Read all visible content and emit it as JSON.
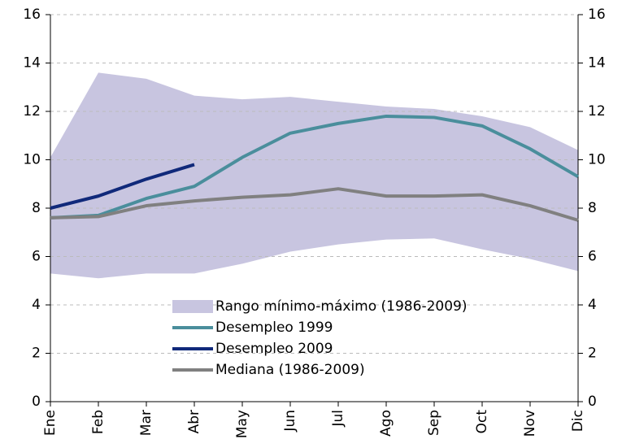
{
  "chart_data": {
    "type": "line",
    "categories": [
      "Ene",
      "Feb",
      "Mar",
      "Abr",
      "May",
      "Jun",
      "Jul",
      "Ago",
      "Sep",
      "Oct",
      "Nov",
      "Dic"
    ],
    "band": {
      "name": "Rango mínimo-máximo (1986-2009)",
      "color": "#c8c5e0",
      "high": [
        10.1,
        13.6,
        13.35,
        12.65,
        12.5,
        12.6,
        12.4,
        12.2,
        12.1,
        11.8,
        11.35,
        10.4
      ],
      "low": [
        5.3,
        5.1,
        5.3,
        5.3,
        5.7,
        6.2,
        6.5,
        6.7,
        6.75,
        6.3,
        5.9,
        5.4
      ]
    },
    "series": [
      {
        "name": "Desempleo 1999",
        "color": "#4a8e9c",
        "values": [
          7.6,
          7.7,
          8.4,
          8.9,
          10.1,
          11.1,
          11.5,
          11.8,
          11.75,
          11.4,
          10.45,
          9.3
        ]
      },
      {
        "name": "Desempleo 2009",
        "color": "#10297a",
        "values": [
          8.0,
          8.5,
          9.2,
          9.8,
          null,
          null,
          null,
          null,
          null,
          null,
          null,
          null
        ]
      },
      {
        "name": "Mediana (1986-2009)",
        "color": "#808080",
        "values": [
          7.6,
          7.65,
          8.1,
          8.3,
          8.45,
          8.55,
          8.8,
          8.5,
          8.5,
          8.55,
          8.1,
          7.5
        ]
      }
    ],
    "ylim": [
      0,
      16
    ],
    "yticks": [
      0,
      2,
      4,
      6,
      8,
      10,
      12,
      14,
      16
    ],
    "y2lim": [
      0,
      16
    ],
    "y2ticks": [
      0,
      2,
      4,
      6,
      8,
      10,
      12,
      14,
      16
    ],
    "grid": true
  }
}
